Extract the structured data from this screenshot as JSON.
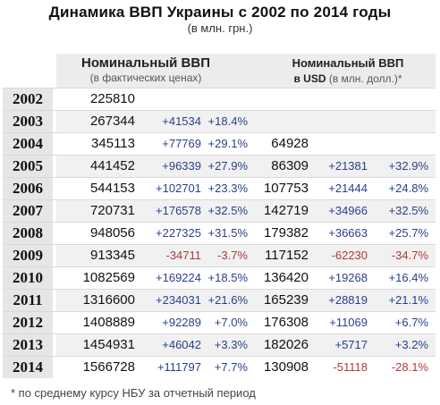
{
  "title": "Динамика ВВП Украины с 2002 по 2014 годы",
  "subtitle": "(в млн. грн.)",
  "header": {
    "nominal_title": "Номинальный ВВП",
    "nominal_sub": "(в фактических ценах)",
    "usd_title": "Номинальный ВВП",
    "usd_prefix": "в USD",
    "usd_sub": " (в млн. долл.)*"
  },
  "rows": [
    {
      "year": "2002",
      "v1": "225810",
      "d1": "",
      "p1": "",
      "v2": "",
      "d2": "",
      "p2": ""
    },
    {
      "year": "2003",
      "v1": "267344",
      "d1": "+41534",
      "p1": "+18.4%",
      "v2": "",
      "d2": "",
      "p2": ""
    },
    {
      "year": "2004",
      "v1": "345113",
      "d1": "+77769",
      "p1": "+29.1%",
      "v2": "64928",
      "d2": "",
      "p2": ""
    },
    {
      "year": "2005",
      "v1": "441452",
      "d1": "+96339",
      "p1": "+27.9%",
      "v2": "86309",
      "d2": "+21381",
      "p2": "+32.9%"
    },
    {
      "year": "2006",
      "v1": "544153",
      "d1": "+102701",
      "p1": "+23.3%",
      "v2": "107753",
      "d2": "+21444",
      "p2": "+24.8%"
    },
    {
      "year": "2007",
      "v1": "720731",
      "d1": "+176578",
      "p1": "+32.5%",
      "v2": "142719",
      "d2": "+34966",
      "p2": "+32.5%"
    },
    {
      "year": "2008",
      "v1": "948056",
      "d1": "+227325",
      "p1": "+31.5%",
      "v2": "179382",
      "d2": "+36663",
      "p2": "+25.7%"
    },
    {
      "year": "2009",
      "v1": "913345",
      "d1": "-34711",
      "p1": "-3.7%",
      "v2": "117152",
      "d2": "-62230",
      "p2": "-34.7%"
    },
    {
      "year": "2010",
      "v1": "1082569",
      "d1": "+169224",
      "p1": "+18.5%",
      "v2": "136420",
      "d2": "+19268",
      "p2": "+16.4%"
    },
    {
      "year": "2011",
      "v1": "1316600",
      "d1": "+234031",
      "p1": "+21.6%",
      "v2": "165239",
      "d2": "+28819",
      "p2": "+21.1%"
    },
    {
      "year": "2012",
      "v1": "1408889",
      "d1": "+92289",
      "p1": "+7.0%",
      "v2": "176308",
      "d2": "+11069",
      "p2": "+6.7%"
    },
    {
      "year": "2013",
      "v1": "1454931",
      "d1": "+46042",
      "p1": "+3.3%",
      "v2": "182026",
      "d2": "+5717",
      "p2": "+3.2%"
    },
    {
      "year": "2014",
      "v1": "1566728",
      "d1": "+111797",
      "p1": "+7.7%",
      "v2": "130908",
      "d2": "-51118",
      "p2": "-28.1%"
    }
  ],
  "footnote": "* по среднему курсу НБУ за отчетный период",
  "colors": {
    "positive": "#2b3f8a",
    "negative": "#b23a3a"
  }
}
